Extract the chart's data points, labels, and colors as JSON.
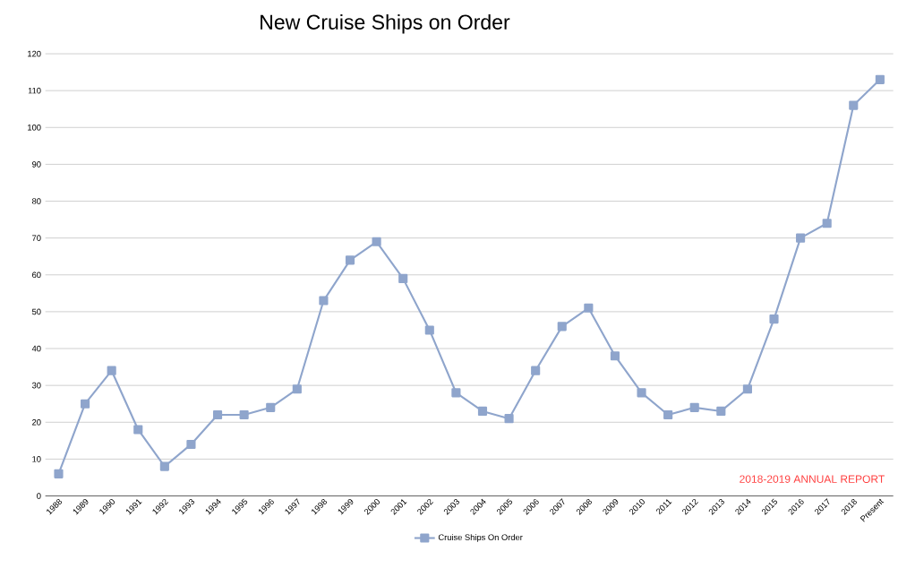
{
  "chart_data": {
    "type": "line",
    "title": "New Cruise Ships on Order",
    "categories": [
      "1988",
      "1989",
      "1990",
      "1991",
      "1992",
      "1993",
      "1994",
      "1995",
      "1996",
      "1997",
      "1998",
      "1999",
      "2000",
      "2001",
      "2002",
      "2003",
      "2004",
      "2005",
      "2006",
      "2007",
      "2008",
      "2009",
      "2010",
      "2011",
      "2012",
      "2013",
      "2014",
      "2015",
      "2016",
      "2017",
      "2018",
      "Present"
    ],
    "series": [
      {
        "name": "Cruise Ships On Order",
        "color": "#8fa5cc",
        "values": [
          6,
          25,
          34,
          18,
          8,
          14,
          22,
          22,
          24,
          29,
          53,
          64,
          69,
          59,
          45,
          28,
          23,
          21,
          34,
          46,
          51,
          38,
          28,
          22,
          24,
          23,
          29,
          48,
          70,
          74,
          106,
          113
        ]
      }
    ],
    "ylim": [
      0,
      120
    ],
    "yticks": [
      0,
      10,
      20,
      30,
      40,
      50,
      60,
      70,
      80,
      90,
      100,
      110,
      120
    ],
    "grid": "y",
    "legend": "bottom",
    "marker": "square",
    "line_style": "solid",
    "annotations": [
      "2018-2019 ANNUAL REPORT"
    ]
  }
}
